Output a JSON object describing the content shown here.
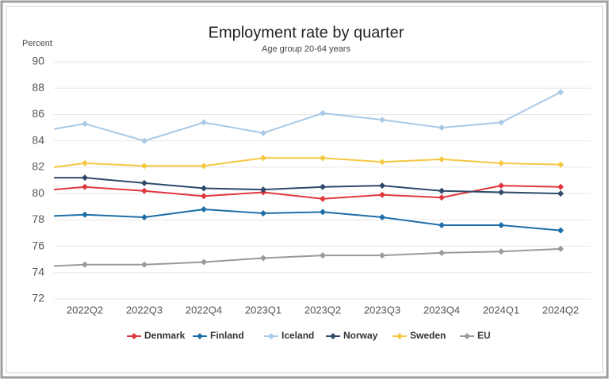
{
  "chart_data": {
    "type": "line",
    "title": "Employment rate by quarter",
    "subtitle": "Age group 20-64 years",
    "y_label": "Percent",
    "categories": [
      null,
      "2022Q2",
      "2022Q3",
      "2022Q4",
      "2023Q1",
      "2023Q2",
      "2023Q3",
      "2023Q4",
      "2024Q1",
      "2024Q2"
    ],
    "series": [
      {
        "name": "Denmark",
        "color": "#e0383e",
        "values": [
          80.3,
          80.5,
          80.2,
          79.8,
          80.1,
          79.6,
          79.9,
          79.7,
          80.6,
          80.5
        ]
      },
      {
        "name": "Finland",
        "color": "#1d6fa9",
        "values": [
          78.3,
          78.4,
          78.2,
          78.8,
          78.5,
          78.6,
          78.2,
          77.6,
          77.6,
          77.2
        ]
      },
      {
        "name": "Iceland",
        "color": "#a9c9e6",
        "values": [
          84.9,
          85.3,
          84.0,
          85.4,
          84.6,
          86.1,
          85.6,
          85.0,
          85.4,
          87.7
        ]
      },
      {
        "name": "Norway",
        "color": "#2e4a6b",
        "values": [
          81.2,
          81.2,
          80.8,
          80.4,
          80.3,
          80.5,
          80.6,
          80.2,
          80.1,
          80.0
        ]
      },
      {
        "name": "Sweden",
        "color": "#f5c842",
        "values": [
          82.0,
          82.3,
          82.1,
          82.1,
          82.7,
          82.7,
          82.4,
          82.6,
          82.3,
          82.2
        ]
      },
      {
        "name": "EU",
        "color": "#9a9a9a",
        "values": [
          74.5,
          74.6,
          74.6,
          74.8,
          75.1,
          75.3,
          75.3,
          75.5,
          75.6,
          75.8
        ]
      }
    ],
    "ylim": [
      72,
      90
    ],
    "yticks": [
      72,
      74,
      76,
      78,
      80,
      82,
      84,
      86,
      88,
      90
    ],
    "grid": true,
    "legend": "bottom"
  }
}
